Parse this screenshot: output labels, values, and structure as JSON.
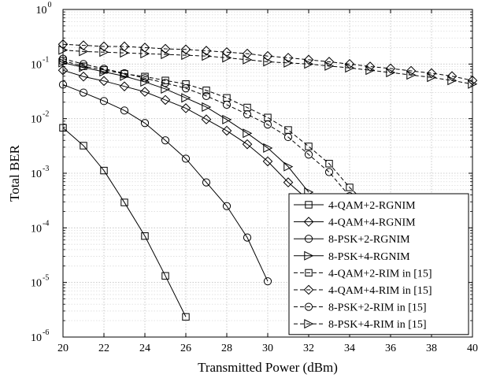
{
  "chart_data": {
    "type": "line",
    "xlabel": "Transmitted Power (dBm)",
    "ylabel": "Total BER",
    "xlim": [
      20,
      40
    ],
    "ylim_log10": [
      -6,
      0
    ],
    "yscale": "log",
    "grid": true,
    "legend_position": "bottom-right",
    "x_ticks": [
      "20",
      "22",
      "24",
      "26",
      "28",
      "30",
      "32",
      "34",
      "36",
      "38",
      "40"
    ],
    "y_ticks": [
      {
        "base": "10",
        "exp": "0"
      },
      {
        "base": "10",
        "exp": "-1"
      },
      {
        "base": "10",
        "exp": "-2"
      },
      {
        "base": "10",
        "exp": "-3"
      },
      {
        "base": "10",
        "exp": "-4"
      },
      {
        "base": "10",
        "exp": "-5"
      },
      {
        "base": "10",
        "exp": "-6"
      }
    ],
    "series": [
      {
        "name": "4-QAM+2-RGNIM",
        "marker": "square",
        "dash": "solid",
        "x": [
          20,
          21,
          22,
          23,
          24,
          25,
          26
        ],
        "y": [
          0.0068,
          0.0032,
          0.00112,
          0.000292,
          7.08e-05,
          1.32e-05,
          2.34e-06
        ]
      },
      {
        "name": "4-QAM+4-RGNIM",
        "marker": "diamond",
        "dash": "solid",
        "x": [
          20,
          21,
          22,
          23,
          24,
          25,
          26,
          27,
          28,
          29,
          30,
          31,
          32
        ],
        "y": [
          0.077,
          0.059,
          0.049,
          0.039,
          0.031,
          0.022,
          0.0155,
          0.0097,
          0.006,
          0.0034,
          0.00165,
          0.00068,
          0.00032
        ]
      },
      {
        "name": "8-PSK+2-RGNIM",
        "marker": "circle",
        "dash": "solid",
        "x": [
          20,
          21,
          22,
          23,
          24,
          25,
          26,
          27,
          28,
          29,
          30
        ],
        "y": [
          0.042,
          0.03,
          0.021,
          0.0141,
          0.0083,
          0.004,
          0.00185,
          0.00068,
          0.00025,
          6.65e-05,
          1.05e-05
        ]
      },
      {
        "name": "8-PSK+4-RGNIM",
        "marker": "triangle-right",
        "dash": "solid",
        "x": [
          20,
          21,
          22,
          23,
          24,
          25,
          26,
          27,
          28,
          29,
          30,
          31,
          32
        ],
        "y": [
          0.106,
          0.087,
          0.072,
          0.06,
          0.047,
          0.035,
          0.024,
          0.0163,
          0.0096,
          0.0054,
          0.0029,
          0.00132,
          0.00045
        ]
      },
      {
        "name": "4-QAM+2-RIM in [15]",
        "marker": "square",
        "dash": "dashed",
        "x": [
          20,
          21,
          22,
          23,
          24,
          25,
          26,
          27,
          28,
          29,
          30,
          31,
          32,
          33,
          34,
          35
        ],
        "y": [
          0.115,
          0.091,
          0.078,
          0.066,
          0.059,
          0.05,
          0.043,
          0.033,
          0.024,
          0.016,
          0.0105,
          0.0062,
          0.0031,
          0.0015,
          0.00055,
          0.00024
        ]
      },
      {
        "name": "4-QAM+4-RIM in [15]",
        "marker": "diamond",
        "dash": "dashed",
        "x": [
          20,
          21,
          22,
          23,
          24,
          25,
          26,
          27,
          28,
          29,
          30,
          31,
          32,
          33,
          34,
          35,
          36,
          37,
          38,
          39,
          40
        ],
        "y": [
          0.23,
          0.22,
          0.21,
          0.21,
          0.2,
          0.19,
          0.185,
          0.175,
          0.165,
          0.155,
          0.14,
          0.13,
          0.12,
          0.11,
          0.1,
          0.09,
          0.083,
          0.075,
          0.068,
          0.06,
          0.05
        ]
      },
      {
        "name": "8-PSK+2-RIM in [15]",
        "marker": "circle",
        "dash": "dashed",
        "x": [
          20,
          21,
          22,
          23,
          24,
          25,
          26,
          27,
          28,
          29,
          30,
          31,
          32,
          33,
          34,
          35
        ],
        "y": [
          0.125,
          0.1,
          0.082,
          0.068,
          0.055,
          0.045,
          0.036,
          0.026,
          0.018,
          0.012,
          0.0078,
          0.0046,
          0.0022,
          0.00105,
          0.00038,
          0.00021
        ]
      },
      {
        "name": "8-PSK+4-RIM in [15]",
        "marker": "triangle-right",
        "dash": "dashed",
        "x": [
          20,
          21,
          22,
          23,
          24,
          25,
          26,
          27,
          28,
          29,
          30,
          31,
          32,
          33,
          34,
          35,
          36,
          37,
          38,
          39,
          40
        ],
        "y": [
          0.18,
          0.17,
          0.165,
          0.16,
          0.155,
          0.15,
          0.145,
          0.14,
          0.13,
          0.12,
          0.11,
          0.105,
          0.1,
          0.092,
          0.085,
          0.077,
          0.07,
          0.063,
          0.057,
          0.05,
          0.043
        ]
      }
    ]
  }
}
